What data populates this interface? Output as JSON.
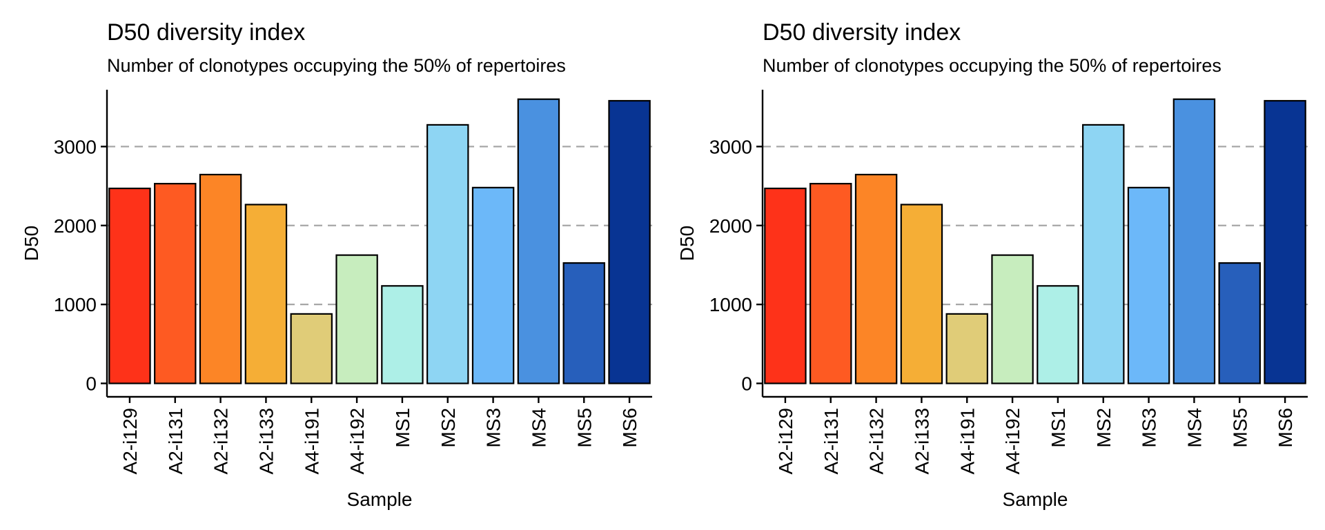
{
  "chart_data": [
    {
      "type": "bar",
      "title": "D50 diversity index",
      "subtitle": "Number of clonotypes occupying the 50% of repertoires",
      "xlabel": "Sample",
      "ylabel": "D50",
      "categories": [
        "A2-i129",
        "A2-i131",
        "A2-i132",
        "A2-i133",
        "A4-i191",
        "A4-i192",
        "MS1",
        "MS2",
        "MS3",
        "MS4",
        "MS5",
        "MS6"
      ],
      "values": [
        2470,
        2530,
        2645,
        2265,
        880,
        1625,
        1235,
        3275,
        2480,
        3600,
        1525,
        3580
      ],
      "colors": [
        "#FE3219",
        "#FE5A22",
        "#FC8526",
        "#F5AE36",
        "#E0CC78",
        "#C7EDBE",
        "#ADEFE7",
        "#8ED5F3",
        "#6CB8F9",
        "#4A91E0",
        "#275FBB",
        "#083493"
      ],
      "yticks": [
        0,
        1000,
        2000,
        3000
      ],
      "ylim": [
        -170,
        3720
      ],
      "grid": "horizontal dashed",
      "legend": "none"
    },
    {
      "type": "bar",
      "title": "D50 diversity index",
      "subtitle": "Number of clonotypes occupying the 50% of repertoires",
      "xlabel": "Sample",
      "ylabel": "D50",
      "categories": [
        "A2-i129",
        "A2-i131",
        "A2-i132",
        "A2-i133",
        "A4-i191",
        "A4-i192",
        "MS1",
        "MS2",
        "MS3",
        "MS4",
        "MS5",
        "MS6"
      ],
      "values": [
        2470,
        2530,
        2645,
        2265,
        880,
        1625,
        1235,
        3275,
        2480,
        3600,
        1525,
        3580
      ],
      "colors": [
        "#FE3219",
        "#FE5A22",
        "#FC8526",
        "#F5AE36",
        "#E0CC78",
        "#C7EDBE",
        "#ADEFE7",
        "#8ED5F3",
        "#6CB8F9",
        "#4A91E0",
        "#275FBB",
        "#083493"
      ],
      "yticks": [
        0,
        1000,
        2000,
        3000
      ],
      "ylim": [
        -170,
        3720
      ],
      "grid": "horizontal dashed",
      "legend": "none"
    }
  ]
}
